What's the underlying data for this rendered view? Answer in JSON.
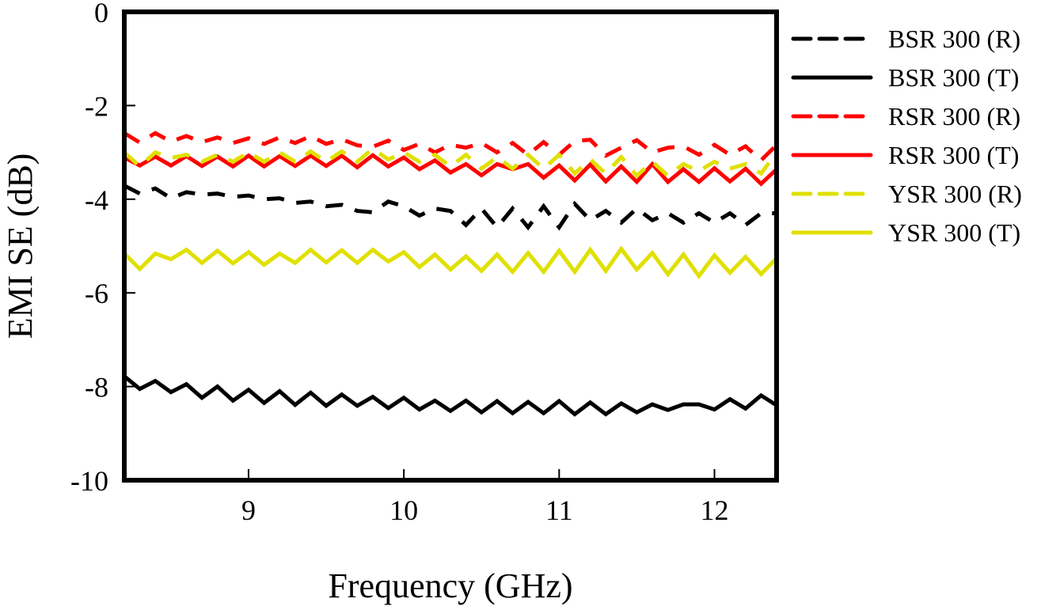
{
  "chart_data": {
    "type": "line",
    "title": "",
    "xlabel": "Frequency (GHz)",
    "ylabel": "EMI SE (dB)",
    "xlim": [
      8.2,
      12.4
    ],
    "ylim": [
      -10,
      0
    ],
    "xticks": [
      9,
      10,
      11,
      12
    ],
    "yticks": [
      0,
      -2,
      -4,
      -6,
      -8,
      -10
    ],
    "xtick_labels": [
      "9",
      "10",
      "11",
      "12"
    ],
    "ytick_labels": [
      "0",
      "-2",
      "-4",
      "-6",
      "-8",
      "-10"
    ],
    "grid": false,
    "legend_position": "outside-right",
    "x": [
      8.2,
      8.3,
      8.4,
      8.5,
      8.6,
      8.7,
      8.8,
      8.9,
      9.0,
      9.1,
      9.2,
      9.3,
      9.4,
      9.5,
      9.6,
      9.7,
      9.8,
      9.9,
      10.0,
      10.1,
      10.2,
      10.3,
      10.4,
      10.5,
      10.6,
      10.7,
      10.8,
      10.9,
      11.0,
      11.1,
      11.2,
      11.3,
      11.4,
      11.5,
      11.6,
      11.7,
      11.8,
      11.9,
      12.0,
      12.1,
      12.2,
      12.3,
      12.4
    ],
    "series": [
      {
        "name": "BSR 300 (R)",
        "color": "#000000",
        "dash": true,
        "values": [
          -3.71,
          -3.88,
          -3.77,
          -3.98,
          -3.85,
          -3.9,
          -3.88,
          -3.95,
          -3.92,
          -4.0,
          -3.98,
          -4.08,
          -4.05,
          -4.15,
          -4.12,
          -4.25,
          -4.28,
          -4.05,
          -4.15,
          -4.35,
          -4.2,
          -4.25,
          -4.55,
          -4.2,
          -4.6,
          -4.2,
          -4.6,
          -4.15,
          -4.6,
          -4.1,
          -4.45,
          -4.25,
          -4.5,
          -4.2,
          -4.45,
          -4.3,
          -4.5,
          -4.3,
          -4.5,
          -4.3,
          -4.55,
          -4.3,
          -4.3
        ]
      },
      {
        "name": "BSR 300 (T)",
        "color": "#000000",
        "dash": false,
        "values": [
          -7.78,
          -8.05,
          -7.88,
          -8.12,
          -7.95,
          -8.24,
          -8.0,
          -8.3,
          -8.07,
          -8.35,
          -8.1,
          -8.39,
          -8.13,
          -8.41,
          -8.17,
          -8.41,
          -8.22,
          -8.46,
          -8.24,
          -8.49,
          -8.3,
          -8.52,
          -8.3,
          -8.55,
          -8.31,
          -8.57,
          -8.33,
          -8.57,
          -8.31,
          -8.59,
          -8.34,
          -8.59,
          -8.36,
          -8.55,
          -8.38,
          -8.5,
          -8.38,
          -8.38,
          -8.49,
          -8.27,
          -8.47,
          -8.19,
          -8.4
        ]
      },
      {
        "name": "RSR 300 (R)",
        "color": "#ff0000",
        "dash": true,
        "values": [
          -2.59,
          -2.79,
          -2.59,
          -2.77,
          -2.65,
          -2.78,
          -2.68,
          -2.8,
          -2.7,
          -2.82,
          -2.68,
          -2.8,
          -2.65,
          -2.82,
          -2.72,
          -2.85,
          -2.88,
          -2.75,
          -2.95,
          -2.82,
          -3.0,
          -2.84,
          -2.9,
          -2.8,
          -3.0,
          -2.8,
          -3.05,
          -2.78,
          -3.05,
          -2.76,
          -2.73,
          -3.07,
          -2.9,
          -2.74,
          -3.0,
          -2.9,
          -2.87,
          -3.05,
          -2.84,
          -3.05,
          -2.87,
          -3.17,
          -2.84
        ]
      },
      {
        "name": "RSR 300 (T)",
        "color": "#ff0000",
        "dash": false,
        "values": [
          -3.11,
          -3.28,
          -3.09,
          -3.28,
          -3.08,
          -3.29,
          -3.09,
          -3.3,
          -3.07,
          -3.3,
          -3.08,
          -3.29,
          -3.07,
          -3.29,
          -3.07,
          -3.32,
          -3.06,
          -3.3,
          -3.11,
          -3.36,
          -3.17,
          -3.43,
          -3.25,
          -3.49,
          -3.25,
          -3.36,
          -3.25,
          -3.54,
          -3.28,
          -3.6,
          -3.26,
          -3.62,
          -3.3,
          -3.63,
          -3.25,
          -3.63,
          -3.36,
          -3.63,
          -3.34,
          -3.62,
          -3.35,
          -3.67,
          -3.36
        ]
      },
      {
        "name": "YSR 300 (R)",
        "color": "#e0e000",
        "dash": true,
        "values": [
          -3.0,
          -3.3,
          -3.0,
          -3.12,
          -3.05,
          -3.2,
          -3.05,
          -3.2,
          -3.0,
          -3.2,
          -3.0,
          -3.2,
          -2.98,
          -3.2,
          -2.98,
          -3.2,
          -2.92,
          -3.15,
          -3.0,
          -3.2,
          -3.05,
          -3.3,
          -3.05,
          -3.35,
          -3.1,
          -3.35,
          -3.05,
          -3.35,
          -3.05,
          -3.45,
          -3.15,
          -3.45,
          -3.1,
          -3.5,
          -3.2,
          -3.5,
          -3.25,
          -3.4,
          -3.2,
          -3.35,
          -3.25,
          -3.45,
          -3.0
        ]
      },
      {
        "name": "YSR 300 (T)",
        "color": "#e0e000",
        "dash": false,
        "values": [
          -5.16,
          -5.49,
          -5.16,
          -5.28,
          -5.08,
          -5.36,
          -5.1,
          -5.37,
          -5.13,
          -5.4,
          -5.16,
          -5.36,
          -5.08,
          -5.35,
          -5.09,
          -5.36,
          -5.08,
          -5.33,
          -5.13,
          -5.45,
          -5.18,
          -5.5,
          -5.22,
          -5.53,
          -5.18,
          -5.55,
          -5.15,
          -5.55,
          -5.1,
          -5.55,
          -5.08,
          -5.53,
          -5.06,
          -5.5,
          -5.15,
          -5.6,
          -5.18,
          -5.64,
          -5.2,
          -5.57,
          -5.23,
          -5.6,
          -5.26
        ]
      }
    ]
  }
}
